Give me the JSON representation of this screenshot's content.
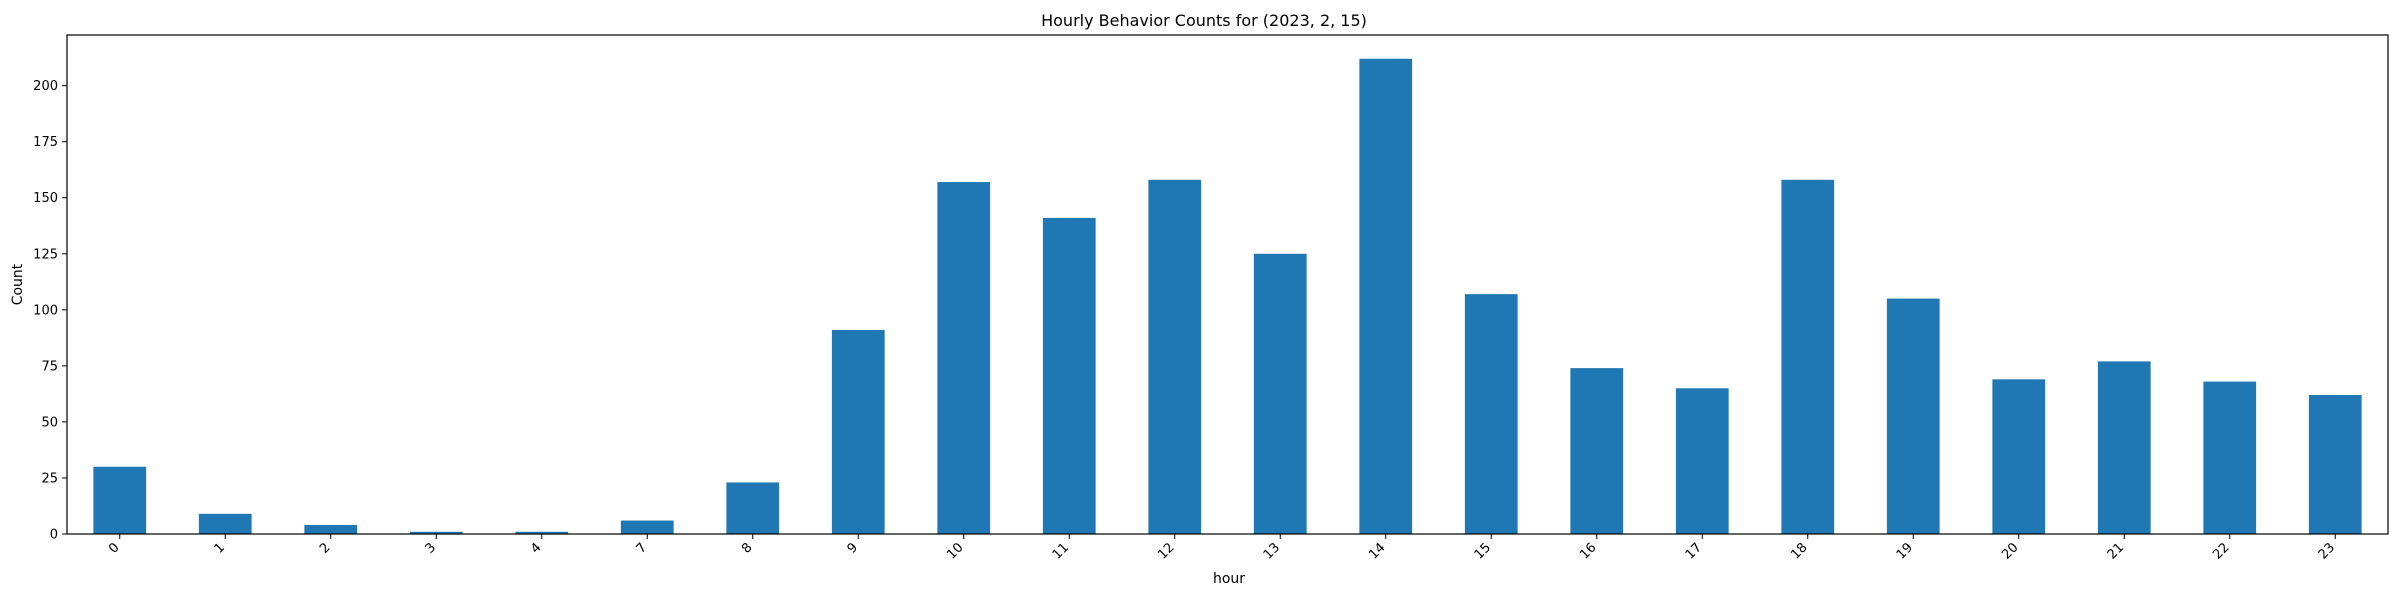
{
  "chart_data": {
    "type": "bar",
    "title": "Hourly Behavior Counts for (2023, 2, 15)",
    "xlabel": "hour",
    "ylabel": "Count",
    "categories": [
      "0",
      "1",
      "2",
      "3",
      "4",
      "7",
      "8",
      "9",
      "10",
      "11",
      "12",
      "13",
      "14",
      "15",
      "16",
      "17",
      "18",
      "19",
      "20",
      "21",
      "22",
      "23"
    ],
    "values": [
      30,
      9,
      4,
      1,
      1,
      6,
      23,
      91,
      157,
      141,
      158,
      125,
      212,
      107,
      74,
      65,
      158,
      105,
      69,
      77,
      68,
      62
    ],
    "ylim": [
      0,
      222.6
    ],
    "yticks": [
      0,
      25,
      50,
      75,
      100,
      125,
      150,
      175,
      200
    ],
    "grid": false,
    "bar_color": "#1f77b4",
    "tick_label_rotation": 45
  }
}
